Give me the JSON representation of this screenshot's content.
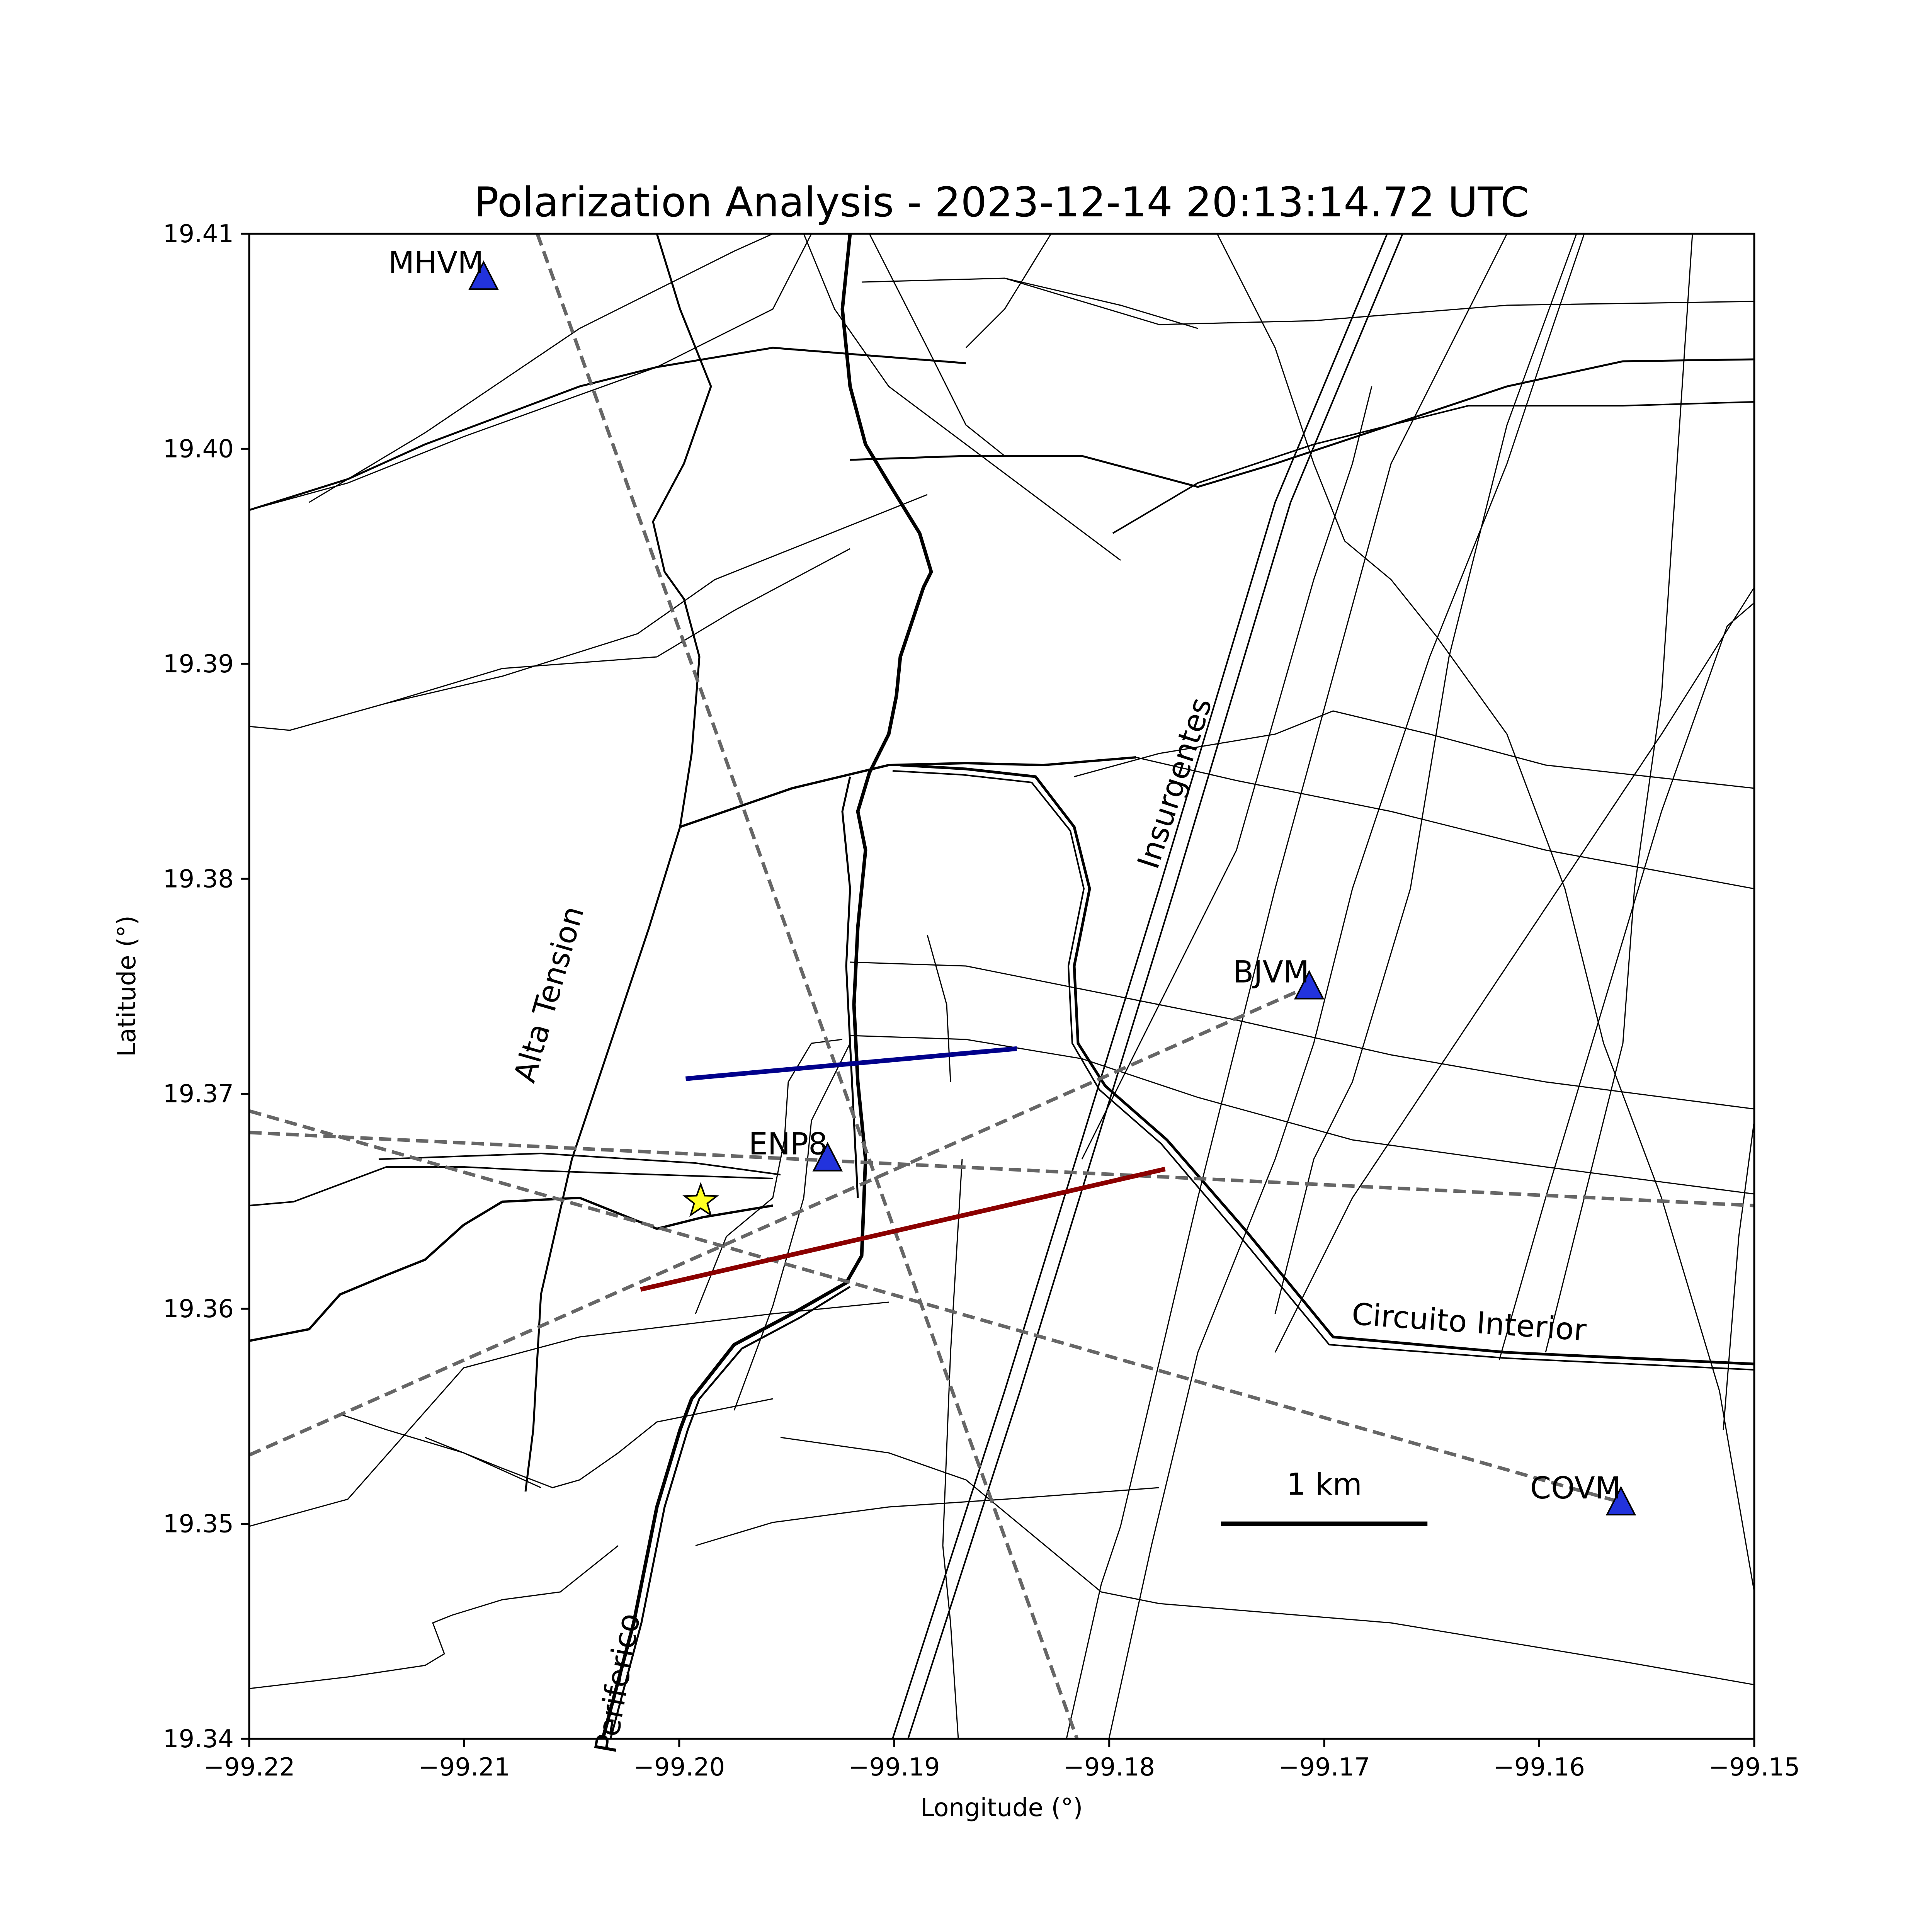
{
  "chart_data": {
    "type": "map",
    "title": "Polarization Analysis - 2023-12-14 20:13:14.72 UTC",
    "xlabel": "Longitude (°)",
    "ylabel": "Latitude (°)",
    "xlim": [
      -99.22,
      -99.15
    ],
    "ylim": [
      19.34,
      19.41
    ],
    "x_ticks": [
      "−99.22",
      "−99.21",
      "−99.20",
      "−99.19",
      "−99.18",
      "−99.17",
      "−99.16",
      "−99.15"
    ],
    "y_ticks": [
      "19.34",
      "19.35",
      "19.36",
      "19.37",
      "19.38",
      "19.39",
      "19.40",
      "19.41"
    ],
    "stations": [
      {
        "name": "MHVM",
        "lon": -99.2091,
        "lat": 19.408
      },
      {
        "name": "BJVM",
        "lon": -99.1707,
        "lat": 19.375
      },
      {
        "name": "ENP8",
        "lon": -99.1931,
        "lat": 19.367
      },
      {
        "name": "COVM",
        "lon": -99.1562,
        "lat": 19.351
      }
    ],
    "event": {
      "lon": -99.199,
      "lat": 19.365
    },
    "dashed_lines": [
      [
        [
          -99.2066,
          19.41
        ],
        [
          -99.1815,
          19.34
        ]
      ],
      [
        [
          -99.22,
          19.3532
        ],
        [
          -99.1707,
          19.375
        ]
      ],
      [
        [
          -99.22,
          19.3682
        ],
        [
          -99.15,
          19.3648
        ]
      ],
      [
        [
          -99.22,
          19.3692
        ],
        [
          -99.1562,
          19.351
        ]
      ]
    ],
    "polarization_segments": [
      {
        "color": "#00008b",
        "points": [
          [
            -99.1997,
            19.3707
          ],
          [
            -99.1843,
            19.3721
          ]
        ]
      },
      {
        "color": "#8b0000",
        "points": [
          [
            -99.2018,
            19.3609
          ],
          [
            -99.1774,
            19.3665
          ]
        ]
      }
    ],
    "road_labels": [
      {
        "text": "Alta Tension",
        "lon": -99.2056,
        "lat": 19.3745,
        "angle": -74
      },
      {
        "text": "Insurgentes",
        "lon": -99.1765,
        "lat": 19.3843,
        "angle": -72
      },
      {
        "text": "Circuito Interior",
        "lon": -99.1633,
        "lat": 19.3589,
        "angle": 4
      },
      {
        "text": "Periferico",
        "lon": -99.2024,
        "lat": 19.3425,
        "angle": -80
      }
    ],
    "scale_bar": {
      "label": "1 km",
      "lon_start": -99.1748,
      "lon_end": -99.1652,
      "lat": 19.35
    },
    "grid": false,
    "colors": {
      "station": "#2233dd",
      "event": "#ffff22",
      "dashed": "#666666"
    }
  }
}
